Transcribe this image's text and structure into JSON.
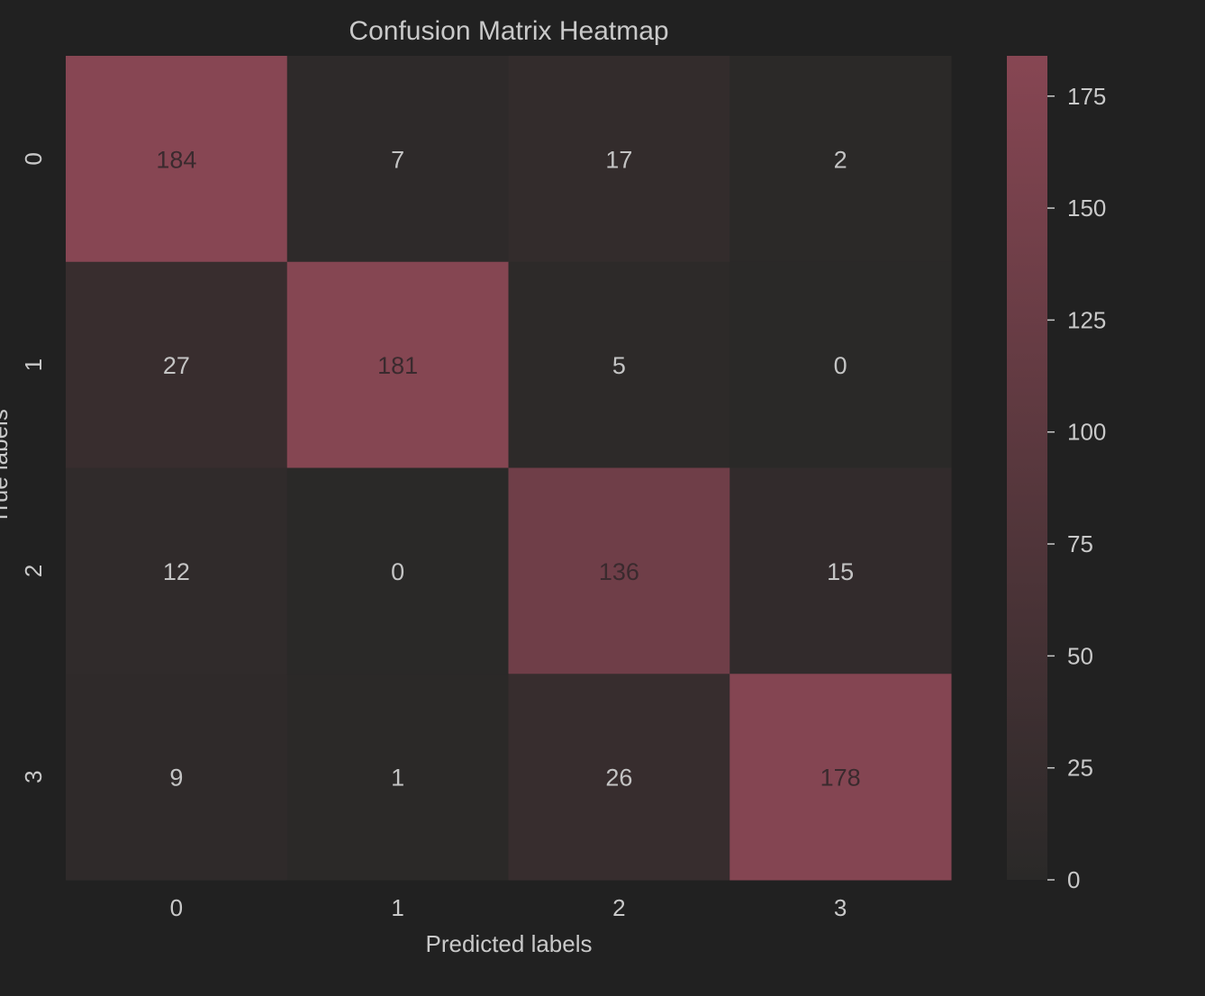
{
  "chart_data": {
    "type": "heatmap",
    "title": "Confusion Matrix Heatmap",
    "xlabel": "Predicted labels",
    "ylabel": "True labels",
    "x_categories": [
      "0",
      "1",
      "2",
      "3"
    ],
    "y_categories": [
      "0",
      "1",
      "2",
      "3"
    ],
    "values": [
      [
        184,
        7,
        17,
        2
      ],
      [
        27,
        181,
        5,
        0
      ],
      [
        12,
        0,
        136,
        15
      ],
      [
        9,
        1,
        26,
        178
      ]
    ],
    "colorbar": {
      "range": [
        0,
        184
      ],
      "ticks": [
        0,
        25,
        50,
        75,
        100,
        125,
        150,
        175
      ]
    },
    "colors": {
      "background": "#212121",
      "low": "#2a2928",
      "high": "#874653",
      "text": "#c9c9c9",
      "annotation_light": "#c4c4c4",
      "annotation_dark": "#3a2a2e"
    },
    "grid": false
  }
}
